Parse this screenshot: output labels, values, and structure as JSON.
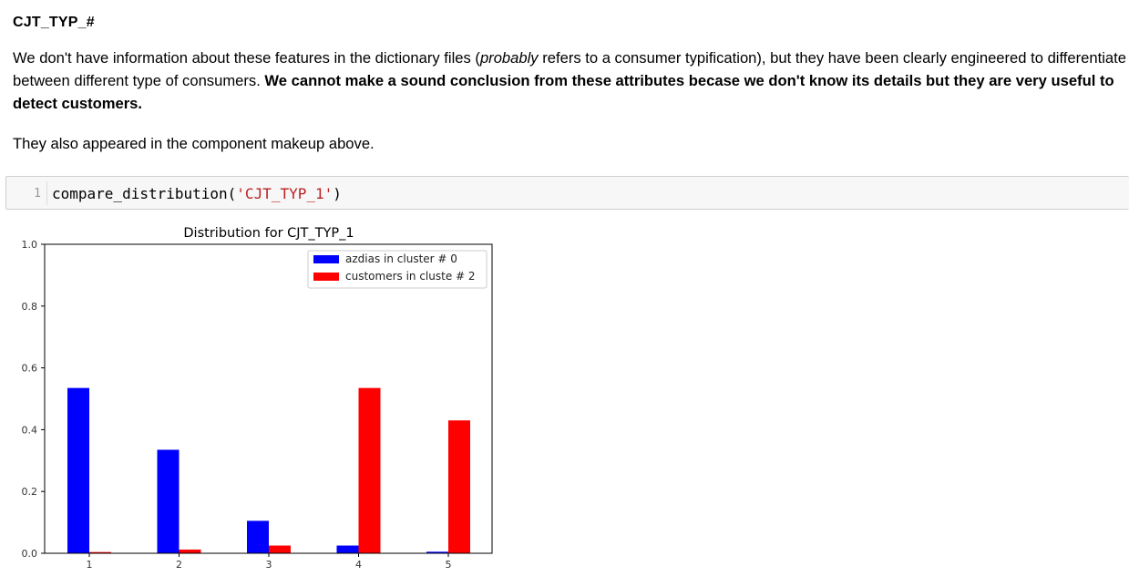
{
  "markdown": {
    "heading": "CJT_TYP_#",
    "para1_a": "We don't have information about these features in the dictionary files (",
    "para1_em": "probably",
    "para1_b": " refers to a consumer typification), but they have been clearly engineered to differentiate between different type of consumers. ",
    "para1_bold": "We cannot make a sound conclusion from these attributes becase we don't know its details but they are very useful to detect customers.",
    "para2": "They also appeared in the component makeup above."
  },
  "code_cell": {
    "line_number": "1",
    "func": "compare_distribution(",
    "arg": "'CJT_TYP_1'",
    "close": ")"
  },
  "chart_data": {
    "type": "bar",
    "title": "Distribution for CJT_TYP_1",
    "categories": [
      "1",
      "2",
      "3",
      "4",
      "5"
    ],
    "series": [
      {
        "name": "azdias in cluster # 0",
        "color": "#0000ff",
        "values": [
          0.535,
          0.335,
          0.105,
          0.025,
          0.005
        ]
      },
      {
        "name": "customers in cluste # 2",
        "color": "#ff0000",
        "values": [
          0.004,
          0.012,
          0.025,
          0.535,
          0.43
        ]
      }
    ],
    "ylim": [
      0.0,
      1.0
    ],
    "yticks": [
      "0.0",
      "0.2",
      "0.4",
      "0.6",
      "0.8",
      "1.0"
    ],
    "legend_position": "top-right",
    "grid": false
  }
}
